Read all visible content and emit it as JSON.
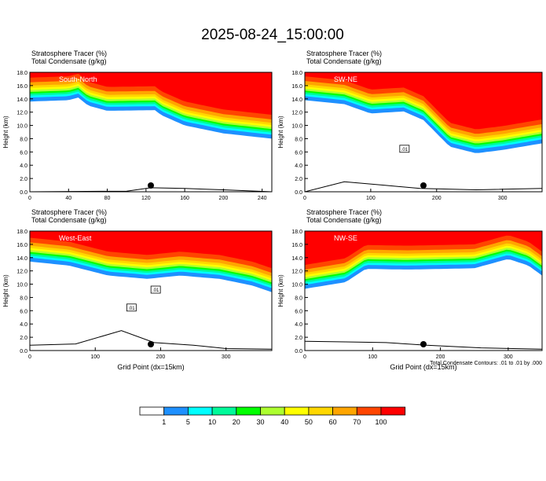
{
  "title": "2025-08-24_15:00:00",
  "colors": {
    "levels": [
      "#ffffff",
      "#1e90ff",
      "#00ffff",
      "#00fa9a",
      "#00ff00",
      "#adff2f",
      "#ffff00",
      "#ffd700",
      "#ffa500",
      "#ff4500",
      "#ff0000"
    ]
  },
  "colorbar": {
    "labels": [
      "1",
      "5",
      "10",
      "20",
      "30",
      "40",
      "50",
      "60",
      "70",
      "100"
    ]
  },
  "footnote": "Total Condensate Contours: .01 to .01 by .000",
  "chart_data": [
    {
      "type": "heatmap",
      "name": "South-North",
      "title_lines": [
        "Stratosphere Tracer   (%)",
        "Total Condensate   (g/kg)"
      ],
      "ylabel": "Height (km)",
      "xlabel": "",
      "xlim": [
        0,
        250
      ],
      "ylim": [
        0,
        18
      ],
      "xticks": [
        "0",
        "40",
        "80",
        "120",
        "160",
        "200",
        "240"
      ],
      "yticks": [
        "0.0",
        "2.0",
        "4.0",
        "6.0",
        "8.0",
        "10.0",
        "12.0",
        "14.0",
        "16.0",
        "18.0"
      ],
      "tracer_10pct_height_km": [
        [
          0,
          14.8
        ],
        [
          40,
          15.0
        ],
        [
          50,
          15.4
        ],
        [
          60,
          14.2
        ],
        [
          80,
          13.4
        ],
        [
          130,
          13.5
        ],
        [
          135,
          12.8
        ],
        [
          160,
          11.2
        ],
        [
          200,
          10.0
        ],
        [
          250,
          9.2
        ]
      ],
      "terrain_km": [
        [
          0,
          0
        ],
        [
          100,
          0.1
        ],
        [
          125,
          0.6
        ],
        [
          160,
          0.5
        ],
        [
          200,
          0.3
        ],
        [
          250,
          0
        ]
      ],
      "contour_labels": []
    },
    {
      "type": "heatmap",
      "name": "SW-NE",
      "title_lines": [
        "Stratosphere Tracer   (%)",
        "Total Condensate   (g/kg)"
      ],
      "ylabel": "Height (km)",
      "xlabel": "",
      "xlim": [
        0,
        360
      ],
      "ylim": [
        0,
        18
      ],
      "xticks": [
        "0",
        "100",
        "200",
        "300"
      ],
      "yticks": [
        "0.0",
        "2.0",
        "4.0",
        "6.0",
        "8.0",
        "10.0",
        "12.0",
        "14.0",
        "16.0",
        "18.0"
      ],
      "tracer_10pct_height_km": [
        [
          0,
          15.0
        ],
        [
          60,
          14.4
        ],
        [
          100,
          13.0
        ],
        [
          150,
          13.3
        ],
        [
          180,
          12.0
        ],
        [
          220,
          8.0
        ],
        [
          260,
          7.0
        ],
        [
          300,
          7.5
        ],
        [
          360,
          8.5
        ]
      ],
      "terrain_km": [
        [
          0,
          0
        ],
        [
          60,
          1.5
        ],
        [
          120,
          1.0
        ],
        [
          175,
          0.5
        ],
        [
          260,
          0.3
        ],
        [
          360,
          0.5
        ]
      ],
      "contour_labels": [
        ".01"
      ]
    },
    {
      "type": "heatmap",
      "name": "West-East",
      "title_lines": [
        "Stratosphere Tracer   (%)",
        "Total Condensate   (g/kg)"
      ],
      "ylabel": "Height (km)",
      "xlabel": "Grid Point  (dx=15km)",
      "xlim": [
        0,
        370
      ],
      "ylim": [
        0,
        18
      ],
      "xticks": [
        "0",
        "100",
        "200",
        "300"
      ],
      "yticks": [
        "0.0",
        "2.0",
        "4.0",
        "6.0",
        "8.0",
        "10.0",
        "12.0",
        "14.0",
        "16.0",
        "18.0"
      ],
      "tracer_10pct_height_km": [
        [
          0,
          14.6
        ],
        [
          60,
          14.0
        ],
        [
          120,
          12.5
        ],
        [
          180,
          12.0
        ],
        [
          230,
          12.5
        ],
        [
          290,
          12.0
        ],
        [
          340,
          11.0
        ],
        [
          370,
          10.0
        ]
      ],
      "terrain_km": [
        [
          0,
          0.8
        ],
        [
          70,
          1.0
        ],
        [
          140,
          3.0
        ],
        [
          190,
          1.2
        ],
        [
          250,
          0.8
        ],
        [
          300,
          0.3
        ],
        [
          370,
          0.2
        ]
      ],
      "contour_labels": [
        ".01",
        ".01"
      ]
    },
    {
      "type": "heatmap",
      "name": "NW-SE",
      "title_lines": [
        "Stratosphere Tracer   (%)",
        "Total Condensate   (g/kg)"
      ],
      "ylabel": "Height (km)",
      "xlabel": "Grid Point  (dx=15km)",
      "xlim": [
        0,
        350
      ],
      "ylim": [
        0,
        18
      ],
      "xticks": [
        "0",
        "100",
        "200",
        "300"
      ],
      "yticks": [
        "0.0",
        "2.0",
        "4.0",
        "6.0",
        "8.0",
        "10.0",
        "12.0",
        "14.0",
        "16.0",
        "18.0"
      ],
      "tracer_10pct_height_km": [
        [
          0,
          10.5
        ],
        [
          60,
          11.5
        ],
        [
          90,
          13.5
        ],
        [
          150,
          13.4
        ],
        [
          250,
          13.6
        ],
        [
          300,
          15.0
        ],
        [
          330,
          14.0
        ],
        [
          350,
          12.5
        ]
      ],
      "terrain_km": [
        [
          0,
          1.4
        ],
        [
          60,
          1.3
        ],
        [
          120,
          1.2
        ],
        [
          180,
          0.8
        ],
        [
          260,
          0.4
        ],
        [
          350,
          0.2
        ]
      ],
      "contour_labels": []
    }
  ]
}
